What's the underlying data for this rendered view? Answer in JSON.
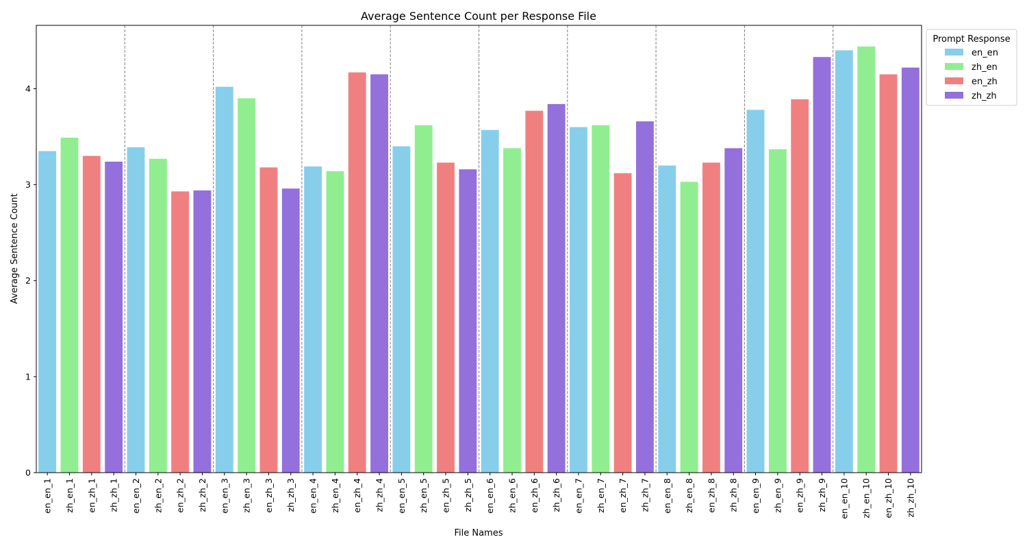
{
  "chart_data": {
    "type": "bar",
    "title": "Average Sentence Count per Response File",
    "xlabel": "File Names",
    "ylabel": "Average Sentence Count",
    "ylim": [
      0,
      4.66
    ],
    "yticks": [
      0,
      1,
      2,
      3,
      4
    ],
    "grid": false,
    "group_separators": "dashed vertical lines between groups of four",
    "legend": {
      "title": "Prompt Response",
      "placement": "outside-top-right",
      "entries": [
        "en_en",
        "zh_en",
        "en_zh",
        "zh_zh"
      ]
    },
    "colors": {
      "en_en": "#87ceeb",
      "zh_en": "#90ee90",
      "en_zh": "#f08080",
      "zh_zh": "#9370db"
    },
    "categories": [
      "en_en_1",
      "zh_en_1",
      "en_zh_1",
      "zh_zh_1",
      "en_en_2",
      "zh_en_2",
      "en_zh_2",
      "zh_zh_2",
      "en_en_3",
      "zh_en_3",
      "en_zh_3",
      "zh_zh_3",
      "en_en_4",
      "zh_en_4",
      "en_zh_4",
      "zh_zh_4",
      "en_en_5",
      "zh_en_5",
      "en_zh_5",
      "zh_zh_5",
      "en_en_6",
      "zh_en_6",
      "en_zh_6",
      "zh_zh_6",
      "en_en_7",
      "zh_en_7",
      "en_zh_7",
      "zh_zh_7",
      "en_en_8",
      "zh_en_8",
      "en_zh_8",
      "zh_zh_8",
      "en_en_9",
      "zh_en_9",
      "en_zh_9",
      "zh_zh_9",
      "en_en_10",
      "zh_en_10",
      "en_zh_10",
      "zh_zh_10"
    ],
    "series_keys": [
      "en_en",
      "zh_en",
      "en_zh",
      "zh_zh",
      "en_en",
      "zh_en",
      "en_zh",
      "zh_zh",
      "en_en",
      "zh_en",
      "en_zh",
      "zh_zh",
      "en_en",
      "zh_en",
      "en_zh",
      "zh_zh",
      "en_en",
      "zh_en",
      "en_zh",
      "zh_zh",
      "en_en",
      "zh_en",
      "en_zh",
      "zh_zh",
      "en_en",
      "zh_en",
      "en_zh",
      "zh_zh",
      "en_en",
      "zh_en",
      "en_zh",
      "zh_zh",
      "en_en",
      "zh_en",
      "en_zh",
      "zh_zh",
      "en_en",
      "zh_en",
      "en_zh",
      "zh_zh"
    ],
    "values": [
      3.35,
      3.49,
      3.3,
      3.24,
      3.39,
      3.27,
      2.93,
      2.94,
      4.02,
      3.9,
      3.18,
      2.96,
      3.19,
      3.14,
      4.17,
      4.15,
      3.4,
      3.62,
      3.23,
      3.16,
      3.57,
      3.38,
      3.77,
      3.84,
      3.6,
      3.62,
      3.12,
      3.66,
      3.2,
      3.03,
      3.23,
      3.38,
      3.78,
      3.37,
      3.89,
      4.33,
      4.4,
      4.44,
      4.15,
      4.22
    ]
  }
}
